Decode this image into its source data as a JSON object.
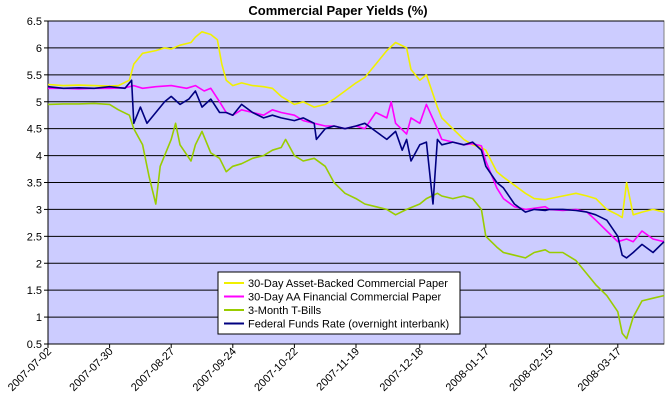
{
  "chart_data": {
    "type": "line",
    "title": "Commercial Paper Yields (%)",
    "xlabel": "",
    "ylabel": "",
    "ylim": [
      0.5,
      6.5
    ],
    "yticks": [
      "0.5",
      "1",
      "1.5",
      "2",
      "2.5",
      "3",
      "3.5",
      "4",
      "4.5",
      "5",
      "5.5",
      "6",
      "6.5"
    ],
    "x_range": [
      "2007-07-02",
      "2008-04-07"
    ],
    "x_tick_labels": [
      "2007-07-02",
      "2007-07-30",
      "2007-08-27",
      "2007-09-24",
      "2007-10-22",
      "2007-11-19",
      "2007-12-18",
      "2008-01-17",
      "2008-02-15",
      "2008-03-17"
    ],
    "grid": true,
    "plot_background": "#ccccff",
    "legend_position": "bottom-center",
    "series": [
      {
        "name": "30-Day Asset-Backed Commercial Paper",
        "color": "#f0f000",
        "points": [
          [
            "2007-07-02",
            5.32
          ],
          [
            "2007-07-09",
            5.3
          ],
          [
            "2007-07-16",
            5.31
          ],
          [
            "2007-07-23",
            5.3
          ],
          [
            "2007-07-30",
            5.29
          ],
          [
            "2007-08-03",
            5.3
          ],
          [
            "2007-08-08",
            5.4
          ],
          [
            "2007-08-10",
            5.7
          ],
          [
            "2007-08-14",
            5.9
          ],
          [
            "2007-08-20",
            5.95
          ],
          [
            "2007-08-24",
            6.0
          ],
          [
            "2007-08-27",
            5.98
          ],
          [
            "2007-08-31",
            6.05
          ],
          [
            "2007-09-05",
            6.1
          ],
          [
            "2007-09-07",
            6.2
          ],
          [
            "2007-09-10",
            6.3
          ],
          [
            "2007-09-14",
            6.25
          ],
          [
            "2007-09-17",
            6.15
          ],
          [
            "2007-09-19",
            5.7
          ],
          [
            "2007-09-21",
            5.4
          ],
          [
            "2007-09-24",
            5.3
          ],
          [
            "2007-09-28",
            5.35
          ],
          [
            "2007-10-03",
            5.3
          ],
          [
            "2007-10-08",
            5.28
          ],
          [
            "2007-10-12",
            5.25
          ],
          [
            "2007-10-16",
            5.1
          ],
          [
            "2007-10-22",
            4.95
          ],
          [
            "2007-10-26",
            5.0
          ],
          [
            "2007-10-31",
            4.9
          ],
          [
            "2007-11-05",
            4.95
          ],
          [
            "2007-11-09",
            5.05
          ],
          [
            "2007-11-14",
            5.2
          ],
          [
            "2007-11-19",
            5.35
          ],
          [
            "2007-11-23",
            5.45
          ],
          [
            "2007-11-28",
            5.7
          ],
          [
            "2007-12-03",
            5.95
          ],
          [
            "2007-12-07",
            6.1
          ],
          [
            "2007-12-12",
            6.0
          ],
          [
            "2007-12-14",
            5.6
          ],
          [
            "2007-12-18",
            5.4
          ],
          [
            "2007-12-21",
            5.5
          ],
          [
            "2007-12-26",
            4.9
          ],
          [
            "2007-12-28",
            4.7
          ],
          [
            "2008-01-02",
            4.5
          ],
          [
            "2008-01-07",
            4.3
          ],
          [
            "2008-01-11",
            4.2
          ],
          [
            "2008-01-15",
            4.15
          ],
          [
            "2008-01-17",
            4.1
          ],
          [
            "2008-01-22",
            3.7
          ],
          [
            "2008-01-25",
            3.6
          ],
          [
            "2008-01-30",
            3.45
          ],
          [
            "2008-02-04",
            3.3
          ],
          [
            "2008-02-08",
            3.2
          ],
          [
            "2008-02-13",
            3.18
          ],
          [
            "2008-02-15",
            3.2
          ],
          [
            "2008-02-21",
            3.25
          ],
          [
            "2008-02-27",
            3.3
          ],
          [
            "2008-03-03",
            3.25
          ],
          [
            "2008-03-07",
            3.2
          ],
          [
            "2008-03-12",
            3.0
          ],
          [
            "2008-03-17",
            2.9
          ],
          [
            "2008-03-19",
            2.85
          ],
          [
            "2008-03-21",
            3.5
          ],
          [
            "2008-03-24",
            2.9
          ],
          [
            "2008-03-28",
            2.95
          ],
          [
            "2008-04-02",
            3.0
          ],
          [
            "2008-04-07",
            2.95
          ]
        ]
      },
      {
        "name": "30-Day AA Financial Commercial Paper",
        "color": "#ff00ff",
        "points": [
          [
            "2007-07-02",
            5.25
          ],
          [
            "2007-07-09",
            5.25
          ],
          [
            "2007-07-16",
            5.24
          ],
          [
            "2007-07-23",
            5.25
          ],
          [
            "2007-07-30",
            5.25
          ],
          [
            "2007-08-06",
            5.26
          ],
          [
            "2007-08-10",
            5.3
          ],
          [
            "2007-08-14",
            5.25
          ],
          [
            "2007-08-20",
            5.28
          ],
          [
            "2007-08-27",
            5.3
          ],
          [
            "2007-09-03",
            5.25
          ],
          [
            "2007-09-07",
            5.3
          ],
          [
            "2007-09-11",
            5.2
          ],
          [
            "2007-09-14",
            5.25
          ],
          [
            "2007-09-18",
            5.0
          ],
          [
            "2007-09-21",
            4.8
          ],
          [
            "2007-09-24",
            4.75
          ],
          [
            "2007-09-28",
            4.85
          ],
          [
            "2007-10-03",
            4.8
          ],
          [
            "2007-10-08",
            4.75
          ],
          [
            "2007-10-12",
            4.85
          ],
          [
            "2007-10-16",
            4.8
          ],
          [
            "2007-10-22",
            4.75
          ],
          [
            "2007-10-26",
            4.65
          ],
          [
            "2007-10-31",
            4.6
          ],
          [
            "2007-11-05",
            4.55
          ],
          [
            "2007-11-09",
            4.55
          ],
          [
            "2007-11-14",
            4.5
          ],
          [
            "2007-11-19",
            4.55
          ],
          [
            "2007-11-23",
            4.5
          ],
          [
            "2007-11-28",
            4.8
          ],
          [
            "2007-12-03",
            4.7
          ],
          [
            "2007-12-05",
            5.0
          ],
          [
            "2007-12-07",
            4.6
          ],
          [
            "2007-12-12",
            4.4
          ],
          [
            "2007-12-14",
            4.7
          ],
          [
            "2007-12-18",
            4.6
          ],
          [
            "2007-12-21",
            4.95
          ],
          [
            "2007-12-26",
            4.5
          ],
          [
            "2007-12-28",
            4.3
          ],
          [
            "2008-01-02",
            4.25
          ],
          [
            "2008-01-07",
            4.2
          ],
          [
            "2008-01-11",
            4.22
          ],
          [
            "2008-01-15",
            4.18
          ],
          [
            "2008-01-17",
            3.9
          ],
          [
            "2008-01-22",
            3.4
          ],
          [
            "2008-01-25",
            3.2
          ],
          [
            "2008-01-30",
            3.05
          ],
          [
            "2008-02-04",
            3.0
          ],
          [
            "2008-02-08",
            3.02
          ],
          [
            "2008-02-13",
            3.05
          ],
          [
            "2008-02-15",
            3.0
          ],
          [
            "2008-02-21",
            2.98
          ],
          [
            "2008-02-27",
            3.0
          ],
          [
            "2008-03-03",
            2.95
          ],
          [
            "2008-03-07",
            2.8
          ],
          [
            "2008-03-12",
            2.6
          ],
          [
            "2008-03-17",
            2.4
          ],
          [
            "2008-03-21",
            2.45
          ],
          [
            "2008-03-24",
            2.4
          ],
          [
            "2008-03-28",
            2.6
          ],
          [
            "2008-04-02",
            2.45
          ],
          [
            "2008-04-07",
            2.4
          ]
        ]
      },
      {
        "name": "3-Month T-Bills",
        "color": "#99cc00",
        "points": [
          [
            "2007-07-02",
            4.95
          ],
          [
            "2007-07-09",
            4.96
          ],
          [
            "2007-07-16",
            4.96
          ],
          [
            "2007-07-23",
            4.97
          ],
          [
            "2007-07-30",
            4.95
          ],
          [
            "2007-08-03",
            4.85
          ],
          [
            "2007-08-08",
            4.75
          ],
          [
            "2007-08-10",
            4.5
          ],
          [
            "2007-08-14",
            4.2
          ],
          [
            "2007-08-17",
            3.6
          ],
          [
            "2007-08-20",
            3.1
          ],
          [
            "2007-08-22",
            3.8
          ],
          [
            "2007-08-27",
            4.3
          ],
          [
            "2007-08-29",
            4.6
          ],
          [
            "2007-08-31",
            4.2
          ],
          [
            "2007-09-05",
            3.9
          ],
          [
            "2007-09-07",
            4.2
          ],
          [
            "2007-09-10",
            4.45
          ],
          [
            "2007-09-14",
            4.05
          ],
          [
            "2007-09-18",
            3.95
          ],
          [
            "2007-09-21",
            3.7
          ],
          [
            "2007-09-24",
            3.8
          ],
          [
            "2007-09-28",
            3.85
          ],
          [
            "2007-10-03",
            3.95
          ],
          [
            "2007-10-08",
            4.0
          ],
          [
            "2007-10-12",
            4.1
          ],
          [
            "2007-10-16",
            4.15
          ],
          [
            "2007-10-18",
            4.3
          ],
          [
            "2007-10-22",
            4.0
          ],
          [
            "2007-10-26",
            3.9
          ],
          [
            "2007-10-31",
            3.95
          ],
          [
            "2007-11-05",
            3.8
          ],
          [
            "2007-11-09",
            3.5
          ],
          [
            "2007-11-14",
            3.3
          ],
          [
            "2007-11-19",
            3.2
          ],
          [
            "2007-11-23",
            3.1
          ],
          [
            "2007-11-28",
            3.05
          ],
          [
            "2007-12-03",
            3.0
          ],
          [
            "2007-12-07",
            2.9
          ],
          [
            "2007-12-12",
            3.0
          ],
          [
            "2007-12-18",
            3.1
          ],
          [
            "2007-12-21",
            3.2
          ],
          [
            "2007-12-26",
            3.3
          ],
          [
            "2007-12-28",
            3.25
          ],
          [
            "2008-01-02",
            3.2
          ],
          [
            "2008-01-07",
            3.25
          ],
          [
            "2008-01-11",
            3.2
          ],
          [
            "2008-01-15",
            3.0
          ],
          [
            "2008-01-17",
            2.5
          ],
          [
            "2008-01-22",
            2.3
          ],
          [
            "2008-01-25",
            2.2
          ],
          [
            "2008-01-30",
            2.15
          ],
          [
            "2008-02-04",
            2.1
          ],
          [
            "2008-02-08",
            2.2
          ],
          [
            "2008-02-13",
            2.25
          ],
          [
            "2008-02-15",
            2.2
          ],
          [
            "2008-02-21",
            2.2
          ],
          [
            "2008-02-27",
            2.05
          ],
          [
            "2008-03-03",
            1.8
          ],
          [
            "2008-03-07",
            1.6
          ],
          [
            "2008-03-12",
            1.4
          ],
          [
            "2008-03-17",
            1.1
          ],
          [
            "2008-03-19",
            0.7
          ],
          [
            "2008-03-21",
            0.6
          ],
          [
            "2008-03-24",
            1.0
          ],
          [
            "2008-03-28",
            1.3
          ],
          [
            "2008-04-02",
            1.35
          ],
          [
            "2008-04-07",
            1.4
          ]
        ]
      },
      {
        "name": "Federal Funds Rate (overnight interbank)",
        "color": "#000080",
        "points": [
          [
            "2007-07-02",
            5.28
          ],
          [
            "2007-07-09",
            5.25
          ],
          [
            "2007-07-16",
            5.26
          ],
          [
            "2007-07-23",
            5.25
          ],
          [
            "2007-07-30",
            5.28
          ],
          [
            "2007-08-06",
            5.25
          ],
          [
            "2007-08-09",
            5.4
          ],
          [
            "2007-08-10",
            4.6
          ],
          [
            "2007-08-13",
            4.9
          ],
          [
            "2007-08-16",
            4.6
          ],
          [
            "2007-08-20",
            4.8
          ],
          [
            "2007-08-24",
            5.0
          ],
          [
            "2007-08-27",
            5.1
          ],
          [
            "2007-08-31",
            4.95
          ],
          [
            "2007-09-04",
            5.05
          ],
          [
            "2007-09-07",
            5.2
          ],
          [
            "2007-09-10",
            4.9
          ],
          [
            "2007-09-14",
            5.05
          ],
          [
            "2007-09-18",
            4.8
          ],
          [
            "2007-09-21",
            4.8
          ],
          [
            "2007-09-24",
            4.75
          ],
          [
            "2007-09-28",
            4.95
          ],
          [
            "2007-10-03",
            4.8
          ],
          [
            "2007-10-08",
            4.7
          ],
          [
            "2007-10-12",
            4.75
          ],
          [
            "2007-10-16",
            4.7
          ],
          [
            "2007-10-22",
            4.65
          ],
          [
            "2007-10-26",
            4.7
          ],
          [
            "2007-10-31",
            4.6
          ],
          [
            "2007-11-01",
            4.3
          ],
          [
            "2007-11-05",
            4.5
          ],
          [
            "2007-11-09",
            4.55
          ],
          [
            "2007-11-14",
            4.5
          ],
          [
            "2007-11-19",
            4.55
          ],
          [
            "2007-11-23",
            4.6
          ],
          [
            "2007-11-28",
            4.45
          ],
          [
            "2007-12-03",
            4.3
          ],
          [
            "2007-12-07",
            4.45
          ],
          [
            "2007-12-10",
            4.1
          ],
          [
            "2007-12-12",
            4.3
          ],
          [
            "2007-12-14",
            3.9
          ],
          [
            "2007-12-18",
            4.2
          ],
          [
            "2007-12-21",
            4.25
          ],
          [
            "2007-12-24",
            3.1
          ],
          [
            "2007-12-26",
            4.3
          ],
          [
            "2007-12-28",
            4.2
          ],
          [
            "2008-01-02",
            4.25
          ],
          [
            "2008-01-07",
            4.2
          ],
          [
            "2008-01-11",
            4.25
          ],
          [
            "2008-01-15",
            4.1
          ],
          [
            "2008-01-17",
            3.8
          ],
          [
            "2008-01-22",
            3.5
          ],
          [
            "2008-01-25",
            3.4
          ],
          [
            "2008-01-30",
            3.1
          ],
          [
            "2008-02-04",
            2.95
          ],
          [
            "2008-02-08",
            3.0
          ],
          [
            "2008-02-13",
            2.98
          ],
          [
            "2008-02-15",
            3.0
          ],
          [
            "2008-02-21",
            3.0
          ],
          [
            "2008-02-27",
            2.98
          ],
          [
            "2008-03-03",
            2.95
          ],
          [
            "2008-03-07",
            2.9
          ],
          [
            "2008-03-12",
            2.8
          ],
          [
            "2008-03-17",
            2.5
          ],
          [
            "2008-03-19",
            2.15
          ],
          [
            "2008-03-21",
            2.1
          ],
          [
            "2008-03-24",
            2.2
          ],
          [
            "2008-03-28",
            2.35
          ],
          [
            "2008-04-02",
            2.2
          ],
          [
            "2008-04-07",
            2.4
          ]
        ]
      }
    ]
  }
}
